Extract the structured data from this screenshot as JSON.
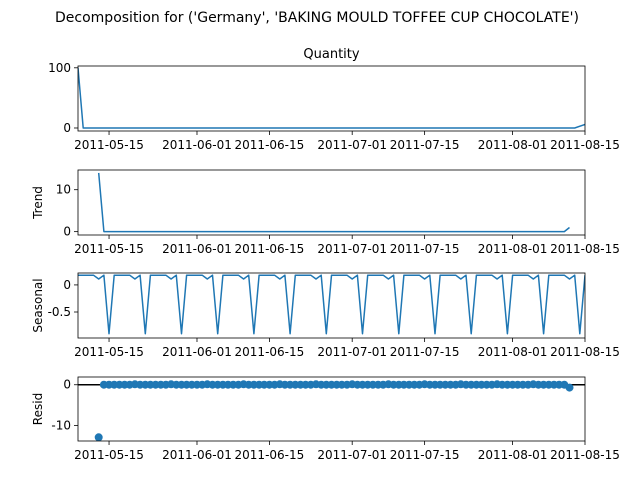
{
  "suptitle": "Decomposition for ('Germany', 'BAKING MOULD TOFFEE CUP CHOCOLATE')",
  "colors": {
    "line": "#1f77b4",
    "axis": "#000000",
    "zero_line": "#000000"
  },
  "chart_data": [
    {
      "type": "line",
      "title": "Quantity",
      "ylabel": "",
      "x_range": [
        "2011-05-09",
        "2011-08-15"
      ],
      "ylim": [
        -5,
        103
      ],
      "y_ticks": [
        0,
        100
      ],
      "x_ticks": [
        "2011-05-15",
        "2011-06-01",
        "2011-06-15",
        "2011-07-01",
        "2011-07-15",
        "2011-08-01",
        "2011-08-15"
      ],
      "series": [
        {
          "values": [
            [
              "2011-05-09",
              100
            ],
            [
              "2011-05-10",
              0
            ],
            [
              "2011-08-13",
              0
            ],
            [
              "2011-08-15",
              6
            ]
          ]
        }
      ]
    },
    {
      "type": "line",
      "title": "",
      "ylabel": "Trend",
      "x_range": [
        "2011-05-09",
        "2011-08-15"
      ],
      "ylim": [
        -0.8,
        14.7
      ],
      "y_ticks": [
        0,
        10
      ],
      "x_ticks": [
        "2011-05-15",
        "2011-06-01",
        "2011-06-15",
        "2011-07-01",
        "2011-07-15",
        "2011-08-01",
        "2011-08-15"
      ],
      "series": [
        {
          "values": [
            [
              "2011-05-13",
              14
            ],
            [
              "2011-05-14",
              0
            ],
            [
              "2011-08-11",
              0
            ],
            [
              "2011-08-12",
              1
            ]
          ]
        }
      ]
    },
    {
      "type": "line",
      "title": "",
      "ylabel": "Seasonal",
      "x_range": [
        "2011-05-09",
        "2011-08-15"
      ],
      "ylim": [
        -0.98,
        0.22
      ],
      "y_ticks": [
        0.0,
        -0.5
      ],
      "x_ticks": [
        "2011-05-15",
        "2011-06-01",
        "2011-06-15",
        "2011-07-01",
        "2011-07-15",
        "2011-08-01",
        "2011-08-15"
      ],
      "period_pattern": [
        0.18,
        0.18,
        0.18,
        0.18,
        0.11,
        0.18,
        -0.9
      ],
      "pattern_start": "2011-05-09",
      "series": [
        {
          "values": "weekly pattern repeated over x_range"
        }
      ]
    },
    {
      "type": "scatter",
      "title": "",
      "ylabel": "Resid",
      "x_range": [
        "2011-05-09",
        "2011-08-15"
      ],
      "ylim": [
        -13.8,
        1.9
      ],
      "y_ticks": [
        0,
        -10
      ],
      "x_ticks": [
        "2011-05-15",
        "2011-06-01",
        "2011-06-15",
        "2011-07-01",
        "2011-07-15",
        "2011-08-01",
        "2011-08-15"
      ],
      "zero_line": true,
      "outliers": [
        [
          "2011-05-13",
          -12.9
        ],
        [
          "2011-08-12",
          -0.7
        ]
      ],
      "weekly_peak": 0.12,
      "series": [
        {
          "values": "daily residuals 2011-05-14 to 2011-08-11, ~0 with weekly small peaks"
        }
      ]
    }
  ]
}
